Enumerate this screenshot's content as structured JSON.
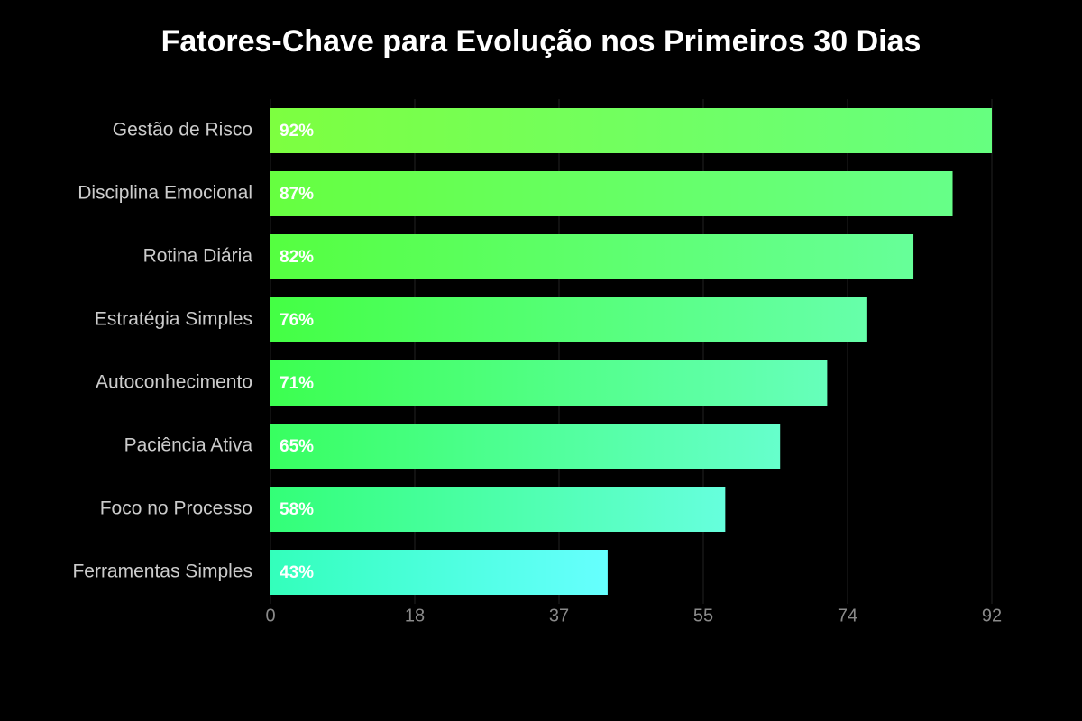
{
  "chart_data": {
    "type": "bar",
    "orientation": "horizontal",
    "title": "Fatores-Chave para Evolução nos Primeiros 30 Dias",
    "categories": [
      "Gestão de Risco",
      "Disciplina Emocional",
      "Rotina Diária",
      "Estratégia Simples",
      "Autoconhecimento",
      "Paciência Ativa",
      "Foco no Processo",
      "Ferramentas Simples"
    ],
    "values": [
      92,
      87,
      82,
      76,
      71,
      65,
      58,
      43
    ],
    "value_labels": [
      "92%",
      "87%",
      "82%",
      "76%",
      "71%",
      "65%",
      "58%",
      "43%"
    ],
    "bar_gradients": [
      [
        "#7dff40",
        "#66ff80"
      ],
      [
        "#66ff40",
        "#66ff88"
      ],
      [
        "#55ff40",
        "#66ff99"
      ],
      [
        "#44ff44",
        "#66ffaa"
      ],
      [
        "#3cff50",
        "#66ffbb"
      ],
      [
        "#38ff60",
        "#66ffcc"
      ],
      [
        "#33ff77",
        "#66ffdd"
      ],
      [
        "#33ffbb",
        "#66ffff"
      ]
    ],
    "xlim": [
      0,
      92
    ],
    "xticks": [
      0,
      {
        "value": 18.4,
        "label": "18"
      },
      {
        "value": 36.8,
        "label": "37"
      },
      {
        "value": 55.2,
        "label": "55"
      },
      {
        "value": 73.6,
        "label": "74"
      },
      92
    ],
    "grid": true
  }
}
